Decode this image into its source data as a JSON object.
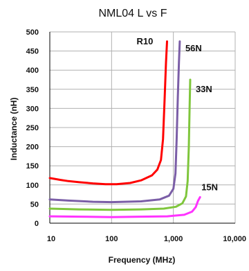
{
  "chart_data": {
    "type": "line",
    "title": "NML04 L vs F",
    "xlabel": "Frequency (MHz)",
    "ylabel": "Inductance (nH)",
    "x_scale": "log",
    "xlim": [
      10,
      10000
    ],
    "ylim": [
      0,
      500
    ],
    "x_ticks": [
      10,
      100,
      1000,
      10000
    ],
    "x_tick_labels": [
      "10",
      "100",
      "1,000",
      "10,000"
    ],
    "y_ticks": [
      0,
      50,
      100,
      150,
      200,
      250,
      300,
      350,
      400,
      450,
      500
    ],
    "grid": "both",
    "legend": "labels-on-curves",
    "series": [
      {
        "name": "R10",
        "color": "#ff0000",
        "points": [
          [
            10,
            118
          ],
          [
            15,
            113
          ],
          [
            20,
            110
          ],
          [
            30,
            107
          ],
          [
            50,
            104
          ],
          [
            80,
            102
          ],
          [
            120,
            102
          ],
          [
            200,
            105
          ],
          [
            300,
            112
          ],
          [
            450,
            125
          ],
          [
            550,
            140
          ],
          [
            630,
            165
          ],
          [
            680,
            220
          ],
          [
            720,
            320
          ],
          [
            760,
            420
          ],
          [
            790,
            475
          ]
        ]
      },
      {
        "name": "56N",
        "color": "#7b5ea7",
        "points": [
          [
            10,
            62
          ],
          [
            20,
            59
          ],
          [
            50,
            56
          ],
          [
            100,
            55
          ],
          [
            300,
            57
          ],
          [
            600,
            62
          ],
          [
            850,
            72
          ],
          [
            1000,
            90
          ],
          [
            1080,
            130
          ],
          [
            1130,
            220
          ],
          [
            1180,
            330
          ],
          [
            1230,
            420
          ],
          [
            1270,
            475
          ]
        ]
      },
      {
        "name": "33N",
        "color": "#7fc63c",
        "points": [
          [
            10,
            38
          ],
          [
            30,
            36
          ],
          [
            100,
            35
          ],
          [
            300,
            36
          ],
          [
            700,
            38
          ],
          [
            1100,
            43
          ],
          [
            1400,
            52
          ],
          [
            1600,
            70
          ],
          [
            1700,
            110
          ],
          [
            1780,
            200
          ],
          [
            1830,
            300
          ],
          [
            1870,
            375
          ]
        ]
      },
      {
        "name": "15N",
        "color": "#ff33ff",
        "points": [
          [
            10,
            18
          ],
          [
            30,
            17
          ],
          [
            100,
            16
          ],
          [
            300,
            17
          ],
          [
            800,
            18
          ],
          [
            1500,
            22
          ],
          [
            2000,
            30
          ],
          [
            2300,
            42
          ],
          [
            2500,
            58
          ],
          [
            2700,
            68
          ]
        ]
      }
    ]
  }
}
